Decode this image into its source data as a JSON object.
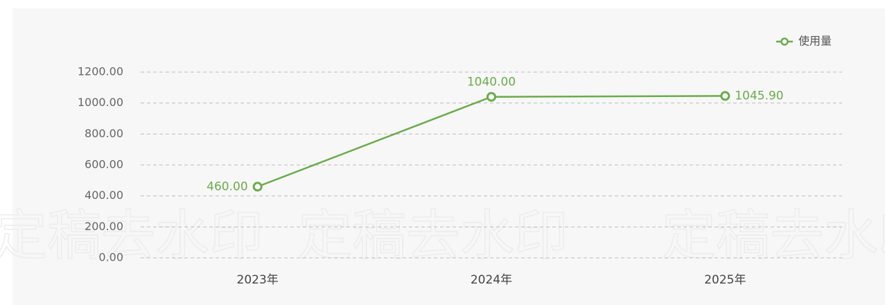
{
  "chart_data": {
    "type": "line",
    "categories": [
      "2023年",
      "2024年",
      "2025年"
    ],
    "series": [
      {
        "name": "使用量",
        "color": "#6aab4b",
        "values": [
          460,
          1040,
          1045.9
        ],
        "value_labels": [
          "460.00",
          "1040.00",
          "1045.90"
        ]
      }
    ],
    "ylim": [
      0,
      1200
    ],
    "yticks": [
      {
        "value": 0,
        "label": "0.00"
      },
      {
        "value": 200,
        "label": "200.00"
      },
      {
        "value": 400,
        "label": "400.00"
      },
      {
        "value": 600,
        "label": "600.00"
      },
      {
        "value": 800,
        "label": "800.00"
      },
      {
        "value": 1000,
        "label": "1000.00"
      },
      {
        "value": 1200,
        "label": "1200.00"
      }
    ],
    "grid": true,
    "legend": "top-right",
    "watermark": "定稿去水印"
  }
}
